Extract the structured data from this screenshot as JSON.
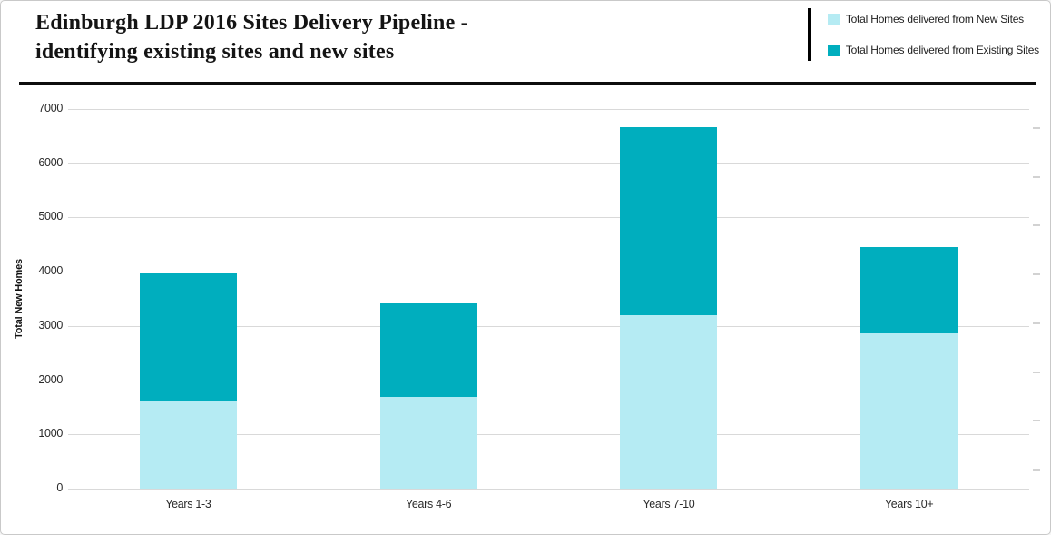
{
  "header": {
    "title_lines": [
      "Edinburgh LDP 2016 Sites Delivery Pipeline -",
      "identifying existing sites and new sites"
    ]
  },
  "legend": {
    "items": [
      {
        "label": "Total Homes delivered from New Sites",
        "color": "#b5ebf3"
      },
      {
        "label": "Total Homes delivered from Existing Sites",
        "color": "#00aebe"
      }
    ]
  },
  "chart_data": {
    "type": "bar",
    "stacked": true,
    "title": "Edinburgh LDP 2016 Sites Delivery Pipeline - identifying existing sites and new sites",
    "categories": [
      "Years 1-3",
      "Years 4-6",
      "Years 7-10",
      "Years 10+"
    ],
    "series": [
      {
        "name": "Total Homes delivered from New Sites",
        "color": "#b5ebf3",
        "values": [
          1600,
          1700,
          3200,
          2870
        ]
      },
      {
        "name": "Total Homes delivered from Existing Sites",
        "color": "#00aebe",
        "values": [
          2370,
          1720,
          3470,
          1580
        ]
      }
    ],
    "stack_totals": [
      3970,
      3420,
      6670,
      4450
    ],
    "xlabel": "",
    "ylabel": "Total New Homes",
    "ylim": [
      0,
      7000
    ],
    "yticks": [
      0,
      1000,
      2000,
      3000,
      4000,
      5000,
      6000,
      7000
    ],
    "grid": true,
    "legend_position": "top-right"
  }
}
